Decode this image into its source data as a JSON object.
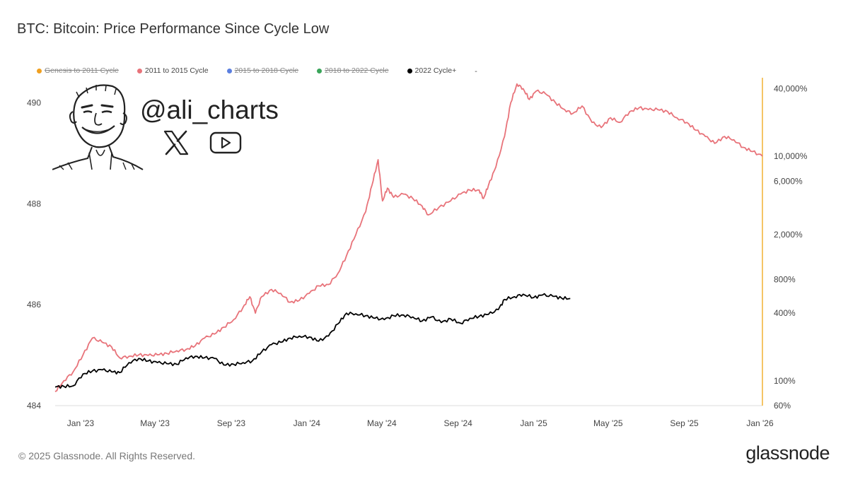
{
  "header": {
    "title": "BTC: Bitcoin: Price Performance Since Cycle Low"
  },
  "legend": [
    {
      "label": "Genesis to 2011 Cycle",
      "color": "#f0a020",
      "hidden": true
    },
    {
      "label": "2011 to 2015 Cycle",
      "color": "#e8737a",
      "hidden": false
    },
    {
      "label": "2015 to 2018 Cycle",
      "color": "#5b7fe0",
      "hidden": true
    },
    {
      "label": "2018 to 2022 Cycle",
      "color": "#3aa55a",
      "hidden": true
    },
    {
      "label": "2022 Cycle+",
      "color": "#000000",
      "hidden": false
    },
    {
      "label": "-",
      "color": "",
      "hidden": false
    }
  ],
  "watermark": {
    "handle": "@ali_charts",
    "avatar_icon": "meme-face-icon",
    "icons": [
      "x-logo-icon",
      "youtube-icon"
    ]
  },
  "footer": {
    "copyright": "© 2025 Glassnode. All Rights Reserved.",
    "brand": "glassnode"
  },
  "chart_data": {
    "type": "line",
    "title": "BTC: Bitcoin: Price Performance Since Cycle Low",
    "xlabel": "",
    "ylabel": "",
    "x_ticks": [
      "Jan '23",
      "May '23",
      "Sep '23",
      "Jan '24",
      "May '24",
      "Sep '24",
      "Jan '25",
      "May '25",
      "Sep '25",
      "Jan '26"
    ],
    "x_range": [
      "2022-11-21",
      "2026-01-05"
    ],
    "y_left_ticks": [
      "484",
      "486",
      "488",
      "490"
    ],
    "y_left_range": [
      484,
      490.5
    ],
    "y_right_ticks": [
      "60%",
      "100%",
      "400%",
      "800%",
      "2,000%",
      "6,000%",
      "10,000%",
      "40,000%"
    ],
    "y_right_scale": "log",
    "y_right_range": [
      60,
      50000
    ],
    "grid": false,
    "legend_position": "top-left",
    "series": [
      {
        "name": "2011 to 2015 Cycle",
        "color": "#e8737a",
        "points": [
          [
            "2022-11-21",
            80
          ],
          [
            "2022-12-05",
            100
          ],
          [
            "2022-12-20",
            120
          ],
          [
            "2023-01-05",
            170
          ],
          [
            "2023-01-20",
            240
          ],
          [
            "2023-02-05",
            220
          ],
          [
            "2023-02-20",
            200
          ],
          [
            "2023-03-05",
            160
          ],
          [
            "2023-03-20",
            165
          ],
          [
            "2023-04-05",
            170
          ],
          [
            "2023-04-20",
            168
          ],
          [
            "2023-05-05",
            170
          ],
          [
            "2023-05-20",
            175
          ],
          [
            "2023-06-05",
            185
          ],
          [
            "2023-06-20",
            190
          ],
          [
            "2023-07-05",
            205
          ],
          [
            "2023-07-20",
            240
          ],
          [
            "2023-08-05",
            260
          ],
          [
            "2023-08-20",
            300
          ],
          [
            "2023-09-05",
            350
          ],
          [
            "2023-09-20",
            450
          ],
          [
            "2023-10-01",
            560
          ],
          [
            "2023-10-10",
            400
          ],
          [
            "2023-10-20",
            560
          ],
          [
            "2023-11-05",
            650
          ],
          [
            "2023-11-20",
            600
          ],
          [
            "2023-12-05",
            500
          ],
          [
            "2023-12-20",
            520
          ],
          [
            "2024-01-05",
            600
          ],
          [
            "2024-01-20",
            700
          ],
          [
            "2024-02-05",
            720
          ],
          [
            "2024-02-20",
            900
          ],
          [
            "2024-03-05",
            1300
          ],
          [
            "2024-03-20",
            2000
          ],
          [
            "2024-04-05",
            3200
          ],
          [
            "2024-04-15",
            5500
          ],
          [
            "2024-04-25",
            9300
          ],
          [
            "2024-05-02",
            4000
          ],
          [
            "2024-05-10",
            5200
          ],
          [
            "2024-05-20",
            4300
          ],
          [
            "2024-06-05",
            4600
          ],
          [
            "2024-06-20",
            4200
          ],
          [
            "2024-07-05",
            3600
          ],
          [
            "2024-07-15",
            3000
          ],
          [
            "2024-08-01",
            3500
          ],
          [
            "2024-08-20",
            4000
          ],
          [
            "2024-09-05",
            4600
          ],
          [
            "2024-09-20",
            5000
          ],
          [
            "2024-10-05",
            5000
          ],
          [
            "2024-10-12",
            4200
          ],
          [
            "2024-10-20",
            5500
          ],
          [
            "2024-11-01",
            8000
          ],
          [
            "2024-11-15",
            15000
          ],
          [
            "2024-11-25",
            30000
          ],
          [
            "2024-12-05",
            44000
          ],
          [
            "2024-12-15",
            40000
          ],
          [
            "2024-12-25",
            32000
          ],
          [
            "2025-01-05",
            38000
          ],
          [
            "2025-01-20",
            36000
          ],
          [
            "2025-02-05",
            30000
          ],
          [
            "2025-02-20",
            26000
          ],
          [
            "2025-03-05",
            24000
          ],
          [
            "2025-03-20",
            28000
          ],
          [
            "2025-04-05",
            20000
          ],
          [
            "2025-04-20",
            18000
          ],
          [
            "2025-05-05",
            22000
          ],
          [
            "2025-05-20",
            20000
          ],
          [
            "2025-06-05",
            25000
          ],
          [
            "2025-06-20",
            27000
          ],
          [
            "2025-07-05",
            26000
          ],
          [
            "2025-07-20",
            26000
          ],
          [
            "2025-08-05",
            25000
          ],
          [
            "2025-08-20",
            22000
          ],
          [
            "2025-09-05",
            20000
          ],
          [
            "2025-09-20",
            17000
          ],
          [
            "2025-10-05",
            15000
          ],
          [
            "2025-10-20",
            13000
          ],
          [
            "2025-11-05",
            15000
          ],
          [
            "2025-11-20",
            14000
          ],
          [
            "2025-12-05",
            12000
          ],
          [
            "2025-12-20",
            11000
          ],
          [
            "2026-01-05",
            10000
          ]
        ]
      },
      {
        "name": "2022 Cycle+",
        "color": "#000000",
        "points": [
          [
            "2022-11-21",
            88
          ],
          [
            "2022-12-05",
            89
          ],
          [
            "2022-12-20",
            90
          ],
          [
            "2023-01-05",
            115
          ],
          [
            "2023-01-20",
            122
          ],
          [
            "2023-02-05",
            125
          ],
          [
            "2023-02-20",
            120
          ],
          [
            "2023-03-05",
            118
          ],
          [
            "2023-03-20",
            145
          ],
          [
            "2023-04-05",
            158
          ],
          [
            "2023-04-20",
            150
          ],
          [
            "2023-05-05",
            145
          ],
          [
            "2023-05-20",
            142
          ],
          [
            "2023-06-05",
            140
          ],
          [
            "2023-06-20",
            160
          ],
          [
            "2023-07-05",
            165
          ],
          [
            "2023-07-20",
            160
          ],
          [
            "2023-08-05",
            158
          ],
          [
            "2023-08-20",
            138
          ],
          [
            "2023-09-05",
            140
          ],
          [
            "2023-09-20",
            145
          ],
          [
            "2023-10-05",
            150
          ],
          [
            "2023-10-20",
            180
          ],
          [
            "2023-11-05",
            210
          ],
          [
            "2023-11-20",
            220
          ],
          [
            "2023-12-05",
            240
          ],
          [
            "2023-12-20",
            250
          ],
          [
            "2024-01-05",
            245
          ],
          [
            "2024-01-20",
            225
          ],
          [
            "2024-02-05",
            250
          ],
          [
            "2024-02-20",
            320
          ],
          [
            "2024-03-05",
            400
          ],
          [
            "2024-03-20",
            395
          ],
          [
            "2024-04-05",
            380
          ],
          [
            "2024-04-20",
            360
          ],
          [
            "2024-05-05",
            350
          ],
          [
            "2024-05-20",
            380
          ],
          [
            "2024-06-05",
            385
          ],
          [
            "2024-06-20",
            370
          ],
          [
            "2024-07-05",
            340
          ],
          [
            "2024-07-20",
            370
          ],
          [
            "2024-08-05",
            330
          ],
          [
            "2024-08-20",
            355
          ],
          [
            "2024-09-05",
            325
          ],
          [
            "2024-09-20",
            360
          ],
          [
            "2024-10-05",
            375
          ],
          [
            "2024-10-20",
            390
          ],
          [
            "2024-11-05",
            430
          ],
          [
            "2024-11-15",
            530
          ],
          [
            "2024-12-01",
            560
          ],
          [
            "2024-12-15",
            590
          ],
          [
            "2025-01-01",
            550
          ],
          [
            "2025-01-15",
            580
          ],
          [
            "2025-02-01",
            565
          ],
          [
            "2025-02-15",
            545
          ],
          [
            "2025-03-01",
            540
          ]
        ]
      }
    ]
  }
}
